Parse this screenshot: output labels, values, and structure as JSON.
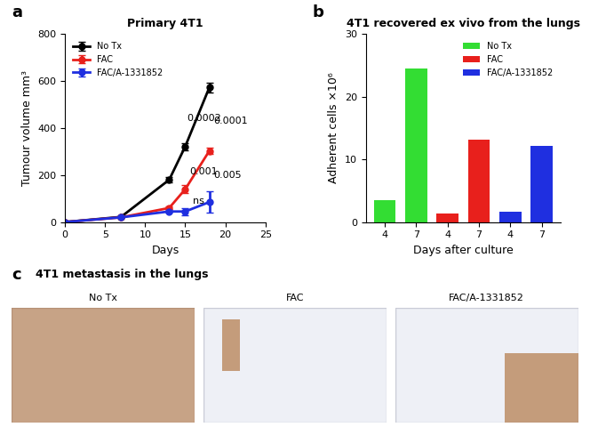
{
  "chart_data": [
    {
      "type": "line",
      "label": "a",
      "title": "Primary 4T1",
      "x_label": "Days",
      "y_label": "Tumour volume mm³",
      "xlim": [
        0,
        25
      ],
      "xticks": [
        0,
        5,
        10,
        15,
        20,
        25
      ],
      "ylim": [
        0,
        800
      ],
      "yticks": [
        0,
        200,
        400,
        600,
        800
      ],
      "legend": "upper left",
      "marker": "o",
      "series": [
        {
          "name": "No Tx",
          "color": "#000000",
          "x": [
            0,
            7,
            13,
            15,
            18
          ],
          "values": [
            0,
            22,
            180,
            322,
            573
          ],
          "errors": [
            0,
            2,
            12,
            15,
            22
          ]
        },
        {
          "name": "FAC",
          "color": "#e8201c",
          "x": [
            0,
            7,
            13,
            15,
            18
          ],
          "values": [
            0,
            20,
            60,
            140,
            303
          ],
          "errors": [
            0,
            2,
            5,
            18,
            12
          ]
        },
        {
          "name": "FAC/A-1331852",
          "color": "#1f2fe0",
          "x": [
            0,
            7,
            13,
            15,
            18
          ],
          "values": [
            0,
            20,
            45,
            45,
            85
          ],
          "errors": [
            0,
            2,
            5,
            15,
            45
          ]
        }
      ],
      "annotations": [
        {
          "text": "0.0002",
          "x": 17.3,
          "y": 440
        },
        {
          "text": "0.0001",
          "x": 20.6,
          "y": 430
        },
        {
          "text": "0.001",
          "x": 17.3,
          "y": 215
        },
        {
          "text": "0.005",
          "x": 20.3,
          "y": 200
        },
        {
          "text": "ns",
          "x": 16.6,
          "y": 88
        }
      ]
    },
    {
      "type": "bar",
      "label": "b",
      "title": "4T1 recovered ex vivo from the lungs",
      "x_label": "Days after culture",
      "y_label": "Adherent cells ×10⁶",
      "categories": [
        "4",
        "7",
        "4",
        "7",
        "4",
        "7"
      ],
      "ylim": [
        0,
        30
      ],
      "yticks": [
        0,
        10,
        20,
        30
      ],
      "legend": "upper right",
      "series": [
        {
          "name": "No Tx",
          "color": "#33dd33",
          "values": [
            3.5,
            24.5,
            null,
            null,
            null,
            null
          ]
        },
        {
          "name": "FAC",
          "color": "#e8201c",
          "values": [
            null,
            null,
            1.4,
            13.2,
            null,
            null
          ]
        },
        {
          "name": "FAC/A-1331852",
          "color": "#1f2fe0",
          "values": [
            null,
            null,
            null,
            null,
            1.6,
            12.2
          ]
        }
      ]
    },
    {
      "type": "image",
      "label": "c",
      "title": "4T1 metastasis in the lungs",
      "panels": [
        "No Tx",
        "FAC",
        "FAC/A-1331852"
      ]
    }
  ]
}
